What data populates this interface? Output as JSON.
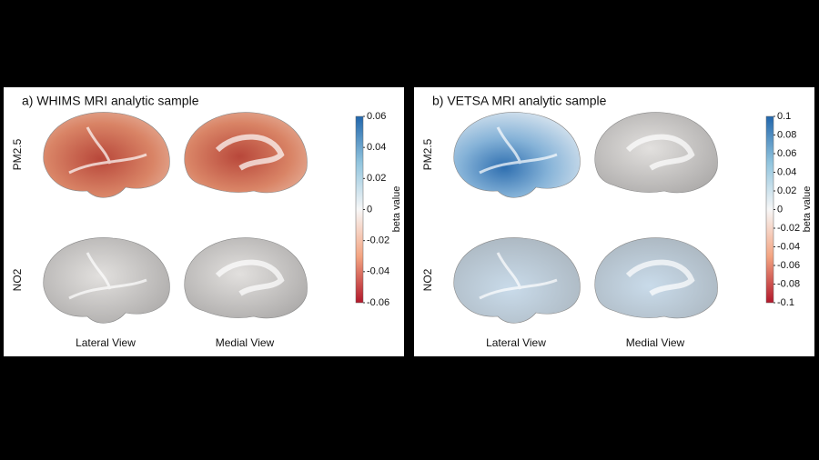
{
  "panels": [
    {
      "title": "a) WHIMS MRI analytic sample",
      "rows": [
        "PM2.5",
        "NO2"
      ],
      "columns": [
        "Lateral View",
        "Medial View"
      ],
      "colorbar": {
        "label": "beta value",
        "ticks": [
          "0.06",
          "0.04",
          "0.02",
          "0",
          "-0.02",
          "-0.04",
          "-0.06"
        ]
      }
    },
    {
      "title": "b) VETSA MRI analytic sample",
      "rows": [
        "PM2.5",
        "NO2"
      ],
      "columns": [
        "Lateral View",
        "Medial View"
      ],
      "colorbar": {
        "label": "beta value",
        "ticks": [
          "0.1",
          "0.08",
          "0.06",
          "0.04",
          "0.02",
          "0",
          "-0.02",
          "-0.04",
          "-0.06",
          "-0.08",
          "-0.1"
        ]
      }
    }
  ]
}
